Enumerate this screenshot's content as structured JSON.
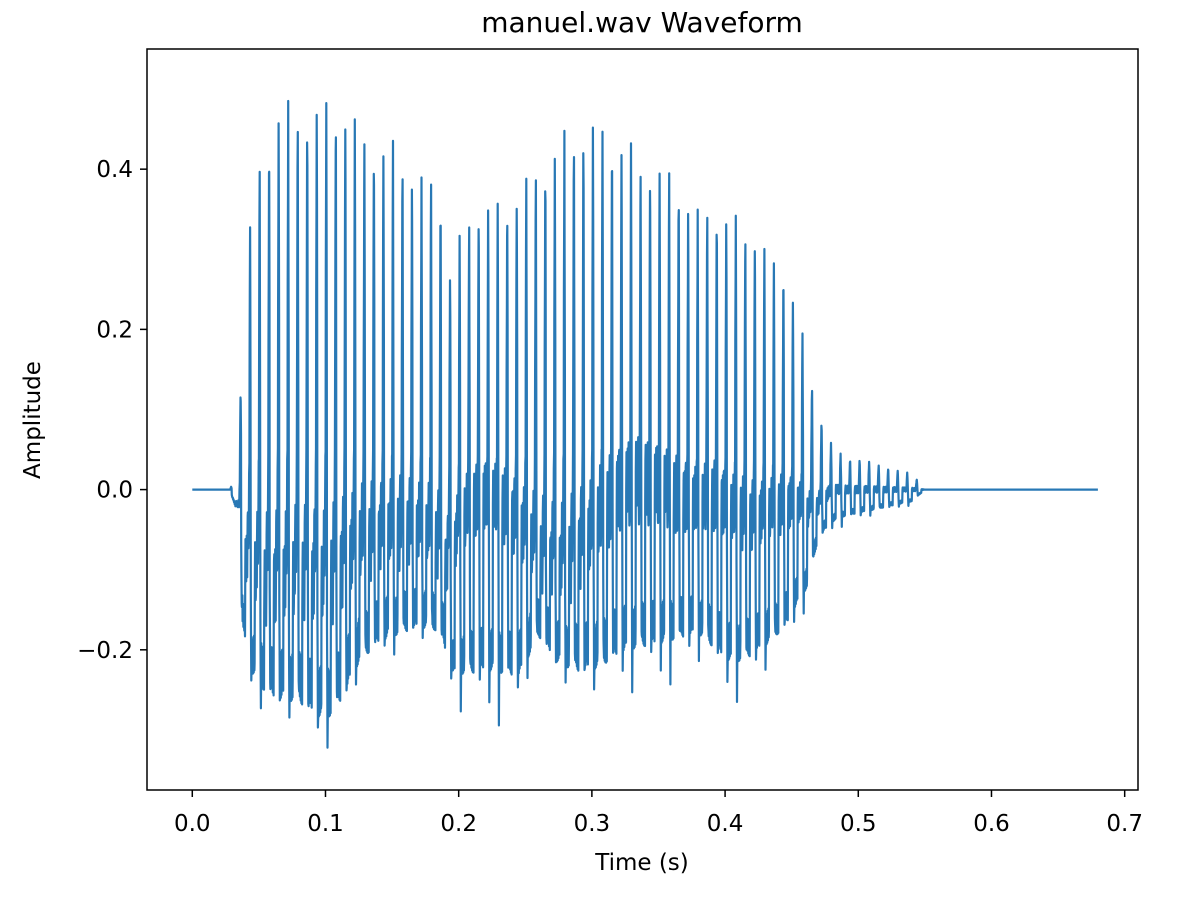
{
  "chart_data": {
    "type": "line",
    "title": "manuel.wav Waveform",
    "xlabel": "Time (s)",
    "ylabel": "Amplitude",
    "xlim": [
      -0.034,
      0.71
    ],
    "ylim": [
      -0.375,
      0.55
    ],
    "xticks": [
      0.0,
      0.1,
      0.2,
      0.3,
      0.4,
      0.5,
      0.6,
      0.7
    ],
    "xtick_labels": [
      "0.0",
      "0.1",
      "0.2",
      "0.3",
      "0.4",
      "0.5",
      "0.6",
      "0.7"
    ],
    "yticks": [
      -0.2,
      0.0,
      0.2,
      0.4
    ],
    "ytick_labels": [
      "−0.2",
      "0.0",
      "0.2",
      "0.4"
    ],
    "grid": false,
    "line_color": "#2878b5",
    "duration": 0.68,
    "envelope": {
      "t": [
        0.0,
        0.028,
        0.034,
        0.038,
        0.045,
        0.055,
        0.065,
        0.08,
        0.1,
        0.112,
        0.125,
        0.14,
        0.155,
        0.17,
        0.182,
        0.188,
        0.192,
        0.196,
        0.2,
        0.21,
        0.22,
        0.232,
        0.245,
        0.26,
        0.275,
        0.29,
        0.305,
        0.32,
        0.335,
        0.35,
        0.365,
        0.38,
        0.392,
        0.405,
        0.42,
        0.435,
        0.445,
        0.455,
        0.462,
        0.47,
        0.48,
        0.49,
        0.5,
        0.51,
        0.52,
        0.53,
        0.54,
        0.545,
        0.55,
        0.68
      ],
      "upper": [
        0.0,
        0.0,
        0.02,
        0.22,
        0.38,
        0.45,
        0.5,
        0.49,
        0.5,
        0.505,
        0.47,
        0.45,
        0.44,
        0.41,
        0.4,
        0.38,
        0.3,
        0.26,
        0.32,
        0.37,
        0.37,
        0.37,
        0.39,
        0.42,
        0.45,
        0.47,
        0.475,
        0.46,
        0.43,
        0.42,
        0.4,
        0.36,
        0.37,
        0.35,
        0.34,
        0.3,
        0.29,
        0.23,
        0.16,
        0.1,
        0.06,
        0.04,
        0.04,
        0.035,
        0.03,
        0.025,
        0.02,
        0.012,
        0.0,
        0.0
      ],
      "lower": [
        0.0,
        0.0,
        -0.03,
        -0.2,
        -0.26,
        -0.28,
        -0.29,
        -0.3,
        -0.33,
        -0.3,
        -0.25,
        -0.22,
        -0.21,
        -0.2,
        -0.2,
        -0.21,
        -0.24,
        -0.28,
        -0.29,
        -0.3,
        -0.3,
        -0.3,
        -0.29,
        -0.2,
        -0.24,
        -0.26,
        -0.275,
        -0.27,
        -0.27,
        -0.26,
        -0.24,
        -0.23,
        -0.26,
        -0.28,
        -0.26,
        -0.24,
        -0.22,
        -0.18,
        -0.15,
        -0.07,
        -0.055,
        -0.045,
        -0.04,
        -0.035,
        -0.03,
        -0.025,
        -0.02,
        -0.01,
        0.0,
        0.0
      ],
      "baseline": [
        0.0,
        0.0,
        -0.02,
        -0.08,
        -0.1,
        -0.12,
        -0.12,
        -0.11,
        -0.12,
        -0.1,
        -0.07,
        -0.06,
        -0.05,
        -0.05,
        -0.06,
        -0.08,
        -0.1,
        -0.08,
        -0.05,
        -0.02,
        -0.01,
        -0.02,
        -0.05,
        -0.08,
        -0.1,
        -0.08,
        -0.04,
        0.0,
        0.02,
        0.01,
        -0.01,
        -0.02,
        -0.01,
        -0.03,
        -0.04,
        -0.03,
        -0.02,
        -0.02,
        -0.03,
        -0.02,
        0.0,
        0.0,
        0.0,
        0.0,
        0.0,
        0.0,
        0.0,
        0.0,
        0.0,
        0.0
      ]
    }
  }
}
